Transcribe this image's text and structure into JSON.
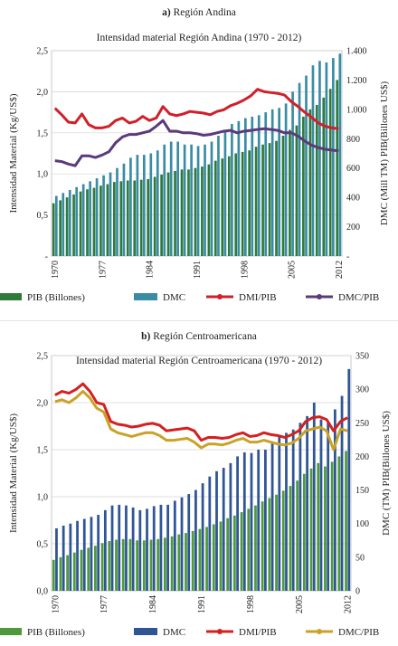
{
  "panels": [
    {
      "heading_prefix": "a)",
      "heading_text": "Región Andina",
      "chart_data": {
        "type": "bar",
        "title": "Intensidad material Región Andina (1970 - 2012)",
        "ylabel": "Intensidad Material (Kg/US$)",
        "y2label": "DMC (Mill TM) PIB(Billones US$)",
        "ylim": [
          0,
          2.5
        ],
        "y2lim": [
          0,
          1400
        ],
        "yticks": [
          "-",
          "0,5",
          "1,0",
          "1,5",
          "2,0",
          "2,5"
        ],
        "y2ticks": [
          "-",
          "200",
          "400",
          "600",
          "800",
          "1.000",
          "1.200",
          "1.400"
        ],
        "years": [
          1970,
          1971,
          1972,
          1973,
          1974,
          1975,
          1976,
          1977,
          1978,
          1979,
          1980,
          1981,
          1982,
          1983,
          1984,
          1985,
          1986,
          1987,
          1988,
          1989,
          1990,
          1991,
          1992,
          1993,
          1994,
          1995,
          1996,
          1997,
          1998,
          1999,
          2000,
          2001,
          2002,
          2003,
          2004,
          2005,
          2006,
          2007,
          2008,
          2009,
          2010,
          2011,
          2012
        ],
        "xtick_labels": [
          "1970",
          "1977",
          "1984",
          "1991",
          "1998",
          "2005",
          "2012"
        ],
        "series": [
          {
            "name": "PIB (Billones)",
            "kind": "bar",
            "axis": "right",
            "color": "#2f7a3a",
            "values": [
              360,
              380,
              400,
              420,
              440,
              455,
              465,
              480,
              490,
              505,
              510,
              515,
              515,
              520,
              525,
              540,
              555,
              570,
              580,
              590,
              590,
              600,
              610,
              625,
              650,
              665,
              680,
              700,
              710,
              720,
              745,
              760,
              770,
              785,
              820,
              860,
              890,
              950,
              1000,
              1030,
              1080,
              1140,
              1200
            ]
          },
          {
            "name": "DMC",
            "kind": "bar",
            "axis": "right",
            "color": "#3a8ca5",
            "values": [
              410,
              430,
              450,
              470,
              490,
              510,
              530,
              550,
              570,
              600,
              630,
              670,
              690,
              690,
              700,
              720,
              760,
              780,
              780,
              760,
              760,
              750,
              760,
              780,
              820,
              860,
              900,
              920,
              940,
              950,
              960,
              980,
              1000,
              1010,
              1040,
              1120,
              1180,
              1230,
              1300,
              1330,
              1320,
              1350,
              1380
            ]
          },
          {
            "name": "DMI/PIB",
            "kind": "line",
            "axis": "left",
            "color": "#d0202a",
            "values": [
              1.8,
              1.72,
              1.63,
              1.62,
              1.73,
              1.6,
              1.56,
              1.56,
              1.58,
              1.65,
              1.68,
              1.62,
              1.64,
              1.7,
              1.65,
              1.68,
              1.82,
              1.73,
              1.71,
              1.73,
              1.76,
              1.75,
              1.74,
              1.72,
              1.76,
              1.78,
              1.83,
              1.86,
              1.9,
              1.95,
              2.03,
              2.0,
              1.99,
              1.98,
              1.96,
              1.88,
              1.82,
              1.75,
              1.69,
              1.62,
              1.58,
              1.56,
              1.55
            ]
          },
          {
            "name": "DMC/PIB",
            "kind": "line",
            "axis": "left",
            "color": "#5b3a7c",
            "values": [
              1.16,
              1.15,
              1.12,
              1.1,
              1.22,
              1.22,
              1.2,
              1.23,
              1.27,
              1.38,
              1.45,
              1.48,
              1.48,
              1.5,
              1.52,
              1.58,
              1.65,
              1.52,
              1.52,
              1.5,
              1.5,
              1.49,
              1.47,
              1.48,
              1.5,
              1.52,
              1.53,
              1.5,
              1.52,
              1.53,
              1.54,
              1.55,
              1.54,
              1.53,
              1.5,
              1.5,
              1.46,
              1.4,
              1.35,
              1.32,
              1.3,
              1.29,
              1.28
            ]
          }
        ]
      }
    },
    {
      "heading_prefix": "b)",
      "heading_text": "Región Centroamericana",
      "chart_data": {
        "type": "bar",
        "title": "Intensidad material Región Centroamericana (1970 - 2012)",
        "ylabel": "Intensidad Material (Kg/US$)",
        "y2label": "DMC (TM) PIB(Billones US$)",
        "ylim": [
          0,
          2.5
        ],
        "y2lim": [
          0,
          350
        ],
        "yticks": [
          "0,0",
          "0,5",
          "1,0",
          "1,5",
          "2,0",
          "2,5"
        ],
        "y2ticks": [
          "0",
          "50",
          "100",
          "150",
          "200",
          "250",
          "300",
          "350"
        ],
        "years": [
          1970,
          1971,
          1972,
          1973,
          1974,
          1975,
          1976,
          1977,
          1978,
          1979,
          1980,
          1981,
          1982,
          1983,
          1984,
          1985,
          1986,
          1987,
          1988,
          1989,
          1990,
          1991,
          1992,
          1993,
          1994,
          1995,
          1996,
          1997,
          1998,
          1999,
          2000,
          2001,
          2002,
          2003,
          2004,
          2005,
          2006,
          2007,
          2008,
          2009,
          2010,
          2011,
          2012
        ],
        "xtick_labels": [
          "1970",
          "1977",
          "1984",
          "1991",
          "1998",
          "2005",
          "2012"
        ],
        "series": [
          {
            "name": "PIB (Billones)",
            "kind": "bar",
            "axis": "right",
            "color": "#4e9a3a",
            "values": [
              46,
              50,
              53,
              57,
              61,
              64,
              67,
              71,
              74,
              76,
              77,
              77,
              75,
              75,
              76,
              77,
              79,
              81,
              84,
              86,
              89,
              92,
              95,
              99,
              103,
              108,
              112,
              117,
              122,
              127,
              133,
              138,
              143,
              149,
              156,
              164,
              174,
              182,
              190,
              185,
              192,
              200,
              208
            ]
          },
          {
            "name": "DMC",
            "kind": "bar",
            "axis": "right",
            "color": "#2f5597",
            "values": [
              93,
              97,
              100,
              104,
              107,
              110,
              113,
              120,
              127,
              128,
              127,
              124,
              120,
              122,
              126,
              128,
              128,
              134,
              139,
              144,
              150,
              160,
              170,
              178,
              183,
              190,
              200,
              206,
              205,
              210,
              210,
              222,
              230,
              235,
              240,
              250,
              260,
              280,
              255,
              250,
              270,
              290,
              330
            ]
          },
          {
            "name": "DMI/PIB",
            "kind": "line",
            "axis": "left",
            "color": "#d42020",
            "values": [
              2.08,
              2.12,
              2.1,
              2.14,
              2.2,
              2.12,
              2.0,
              1.98,
              1.8,
              1.77,
              1.76,
              1.74,
              1.75,
              1.77,
              1.78,
              1.76,
              1.7,
              1.71,
              1.72,
              1.73,
              1.7,
              1.6,
              1.63,
              1.63,
              1.62,
              1.63,
              1.66,
              1.68,
              1.64,
              1.65,
              1.68,
              1.66,
              1.65,
              1.63,
              1.66,
              1.7,
              1.8,
              1.84,
              1.85,
              1.82,
              1.7,
              1.8,
              1.84
            ]
          },
          {
            "name": "DMC/PIB",
            "kind": "line",
            "axis": "left",
            "color": "#c9a227",
            "values": [
              2.01,
              2.03,
              2.0,
              2.05,
              2.12,
              2.05,
              1.94,
              1.9,
              1.72,
              1.68,
              1.66,
              1.64,
              1.66,
              1.68,
              1.68,
              1.65,
              1.6,
              1.6,
              1.61,
              1.62,
              1.58,
              1.52,
              1.56,
              1.56,
              1.55,
              1.57,
              1.6,
              1.62,
              1.58,
              1.58,
              1.6,
              1.58,
              1.56,
              1.55,
              1.57,
              1.62,
              1.7,
              1.72,
              1.74,
              1.7,
              1.5,
              1.72,
              1.7
            ]
          }
        ]
      }
    }
  ]
}
